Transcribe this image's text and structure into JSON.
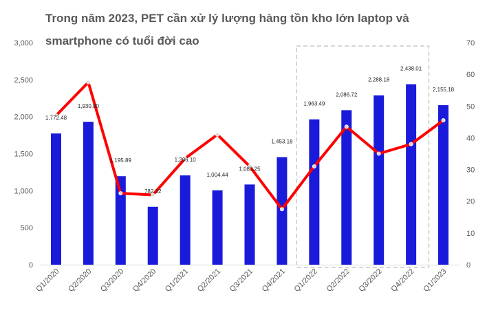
{
  "chart_data": {
    "type": "bar",
    "title": "Trong năm 2023, PET cần xử lý lượng hàng tồn kho lớn laptop và smartphone có tuổi đời cao",
    "categories": [
      "Q1/2020",
      "Q2/2020",
      "Q3/2020",
      "Q4/2020",
      "Q1/2021",
      "Q2/2021",
      "Q3/2021",
      "Q4/2021",
      "Q1/2022",
      "Q2/2022",
      "Q3/2022",
      "Q4/2022",
      "Q1/2023"
    ],
    "series": [
      {
        "type": "bar",
        "axis": "left",
        "color": "#1a1adb",
        "values": [
          1772.48,
          1930.8,
          1195.89,
          782.32,
          1206.1,
          1004.44,
          1083.25,
          1453.18,
          1963.49,
          2086.72,
          2288.18,
          2438.01,
          2155.18
        ],
        "labels": [
          "1,772.48",
          "1,930.80",
          "1,195.89",
          "782.32",
          "1,206.10",
          "1,004.44",
          "1,083.25",
          "1,453.18",
          "1,963.49",
          "2,086.72",
          "2,288.18",
          "2,438.01",
          "2,155.18"
        ]
      },
      {
        "type": "line",
        "axis": "right",
        "color": "#ff0000",
        "values": [
          47,
          57.5,
          22.5,
          22,
          33.5,
          41,
          31,
          17.5,
          31,
          43.5,
          35,
          38,
          45.5
        ]
      }
    ],
    "y_left": {
      "min": 0,
      "max": 3000,
      "step": 500,
      "tick_labels": [
        "0",
        "500",
        "1,000",
        "1,500",
        "2,000",
        "2,500",
        "3,000"
      ]
    },
    "y_right": {
      "min": 0,
      "max": 70,
      "step": 10,
      "tick_labels": [
        "0",
        "10",
        "20",
        "30",
        "40",
        "50",
        "60",
        "70"
      ]
    },
    "highlight": {
      "from": "Q1/2022",
      "to": "Q4/2022",
      "style": "dashed-box",
      "color": "#c8c8c8"
    },
    "grid": false,
    "legend": "none"
  }
}
